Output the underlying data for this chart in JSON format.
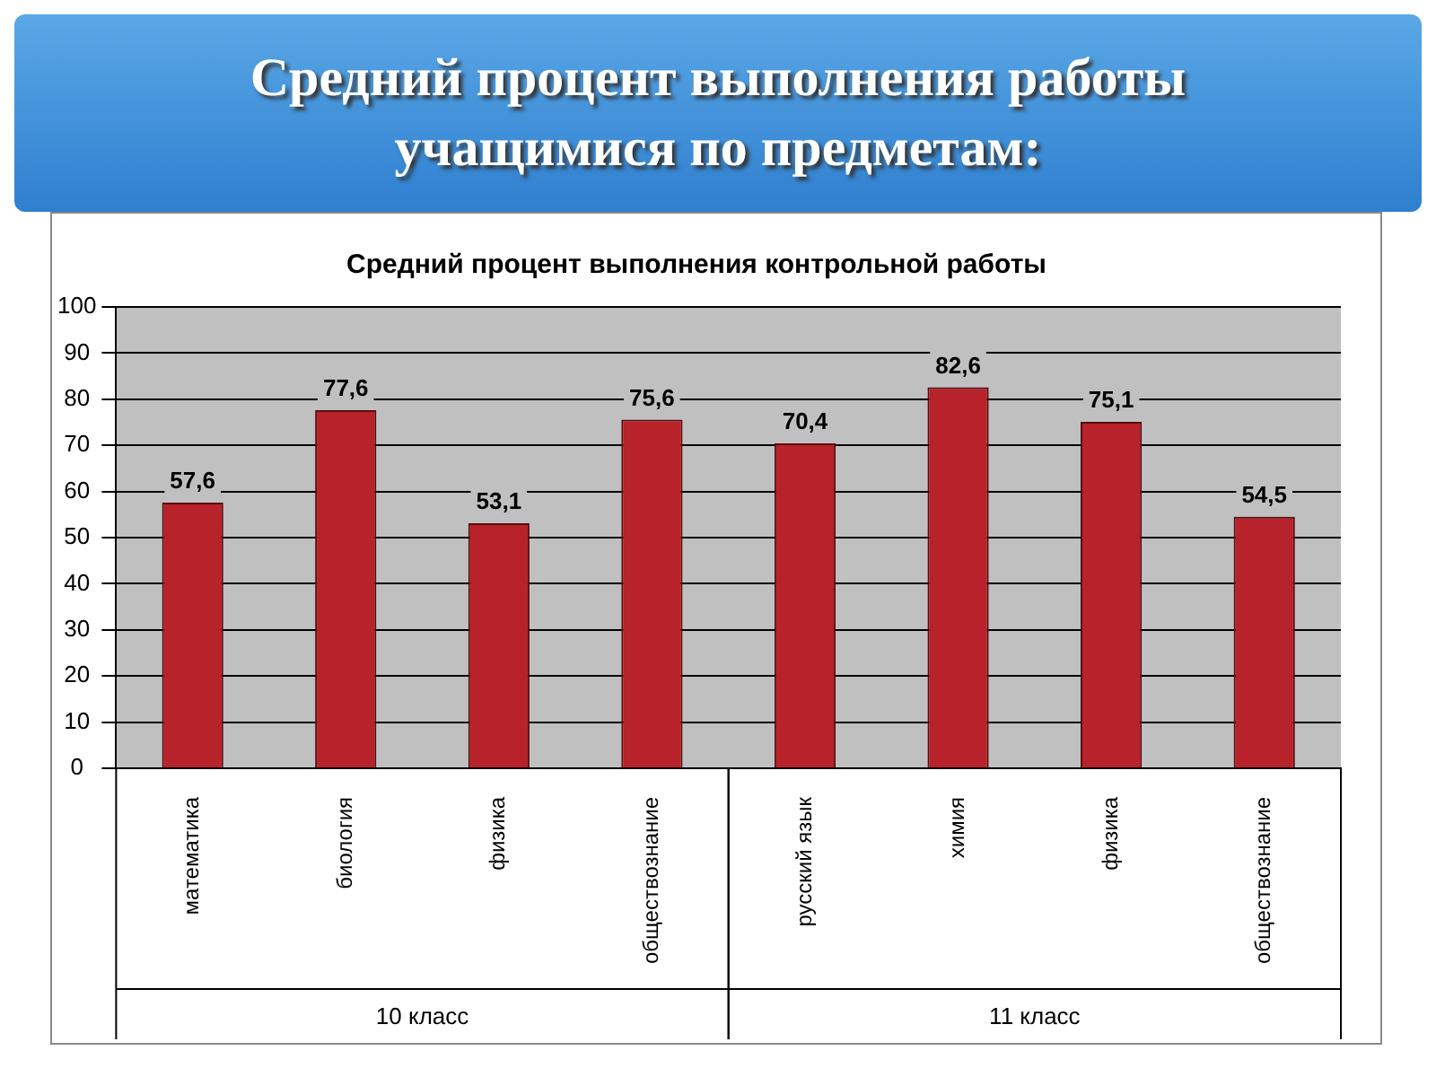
{
  "chart_data": {
    "type": "bar",
    "title": "Средний процент выполнения работы учащимися по предметам:",
    "subtitle": "Средний процент выполнения контрольной работы",
    "categories": [
      "математика",
      "биология",
      "физика",
      "обществознание",
      "русский язык",
      "химия",
      "физика",
      "обществознание"
    ],
    "values": [
      57.6,
      77.6,
      53.1,
      75.6,
      70.4,
      82.6,
      75.1,
      54.5
    ],
    "value_labels": [
      "57,6",
      "77,6",
      "53,1",
      "75,6",
      "70,4",
      "82,6",
      "75,1",
      "54,5"
    ],
    "color": "#b8222a",
    "ylim": [
      0,
      100
    ],
    "yticks": [
      0,
      10,
      20,
      30,
      40,
      50,
      60,
      70,
      80,
      90,
      100
    ],
    "grid": "y",
    "legend": false,
    "annotations": [
      "10 класс",
      "11 класс"
    ]
  }
}
